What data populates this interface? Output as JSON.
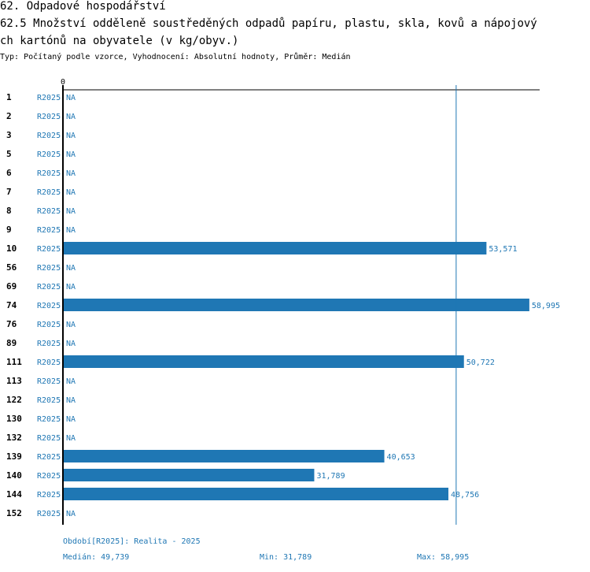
{
  "header": {
    "title_line1": "62. Odpadové hospodářství",
    "title_line2": "62.5 Množství odděleně soustředěných odpadů papíru, plastu, skla, kovů a nápojový",
    "title_line3": "ch kartónů na obyvatele (v kg/obyv.)",
    "subtitle": "Typ: Počítaný podle vzorce, Vyhodnocení: Absolutní hodnoty, Průměr: Medián"
  },
  "chart_data": {
    "type": "bar",
    "orientation": "horizontal",
    "axis_zero_label": "0",
    "xlim": [
      0,
      60.3
    ],
    "median": 49.739,
    "categories": [
      "1",
      "2",
      "3",
      "5",
      "6",
      "7",
      "8",
      "9",
      "10",
      "56",
      "69",
      "74",
      "76",
      "89",
      "111",
      "113",
      "122",
      "130",
      "132",
      "139",
      "140",
      "144",
      "152"
    ],
    "period": "R2025",
    "values": [
      null,
      null,
      null,
      null,
      null,
      null,
      null,
      null,
      53.571,
      null,
      null,
      58.995,
      null,
      null,
      50.722,
      null,
      null,
      null,
      null,
      40.653,
      31.789,
      48.756,
      null
    ],
    "value_labels": [
      "NA",
      "NA",
      "NA",
      "NA",
      "NA",
      "NA",
      "NA",
      "NA",
      "53,571",
      "NA",
      "NA",
      "58,995",
      "NA",
      "NA",
      "50,722",
      "NA",
      "NA",
      "NA",
      "NA",
      "40,653",
      "31,789",
      "48,756",
      "NA"
    ]
  },
  "footer": {
    "period_text": "Období[R2025]: Realita - 2025",
    "median_text": "Medián: 49,739",
    "min_text": "Min: 31,789",
    "max_text": "Max: 58,995"
  },
  "colors": {
    "bar": "#1f77b4",
    "text_accent": "#1f77b4"
  }
}
